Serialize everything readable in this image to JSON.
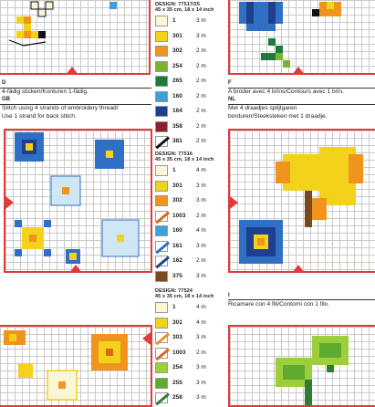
{
  "legend1": {
    "design": "DESIGN: 77517/25",
    "size": "45 x 35 cm, 18 x 14 inch",
    "rows": [
      {
        "color": "#fbf6d6",
        "code": "1",
        "len": "3 m"
      },
      {
        "color": "#f2d21b",
        "code": "301",
        "len": "3 m"
      },
      {
        "color": "#f0941e",
        "code": "302",
        "len": "2 m"
      },
      {
        "color": "#7ab32c",
        "code": "254",
        "len": "2 m"
      },
      {
        "color": "#1e7a3c",
        "code": "265",
        "len": "2 m"
      },
      {
        "color": "#3ea0d8",
        "code": "160",
        "len": "2 m"
      },
      {
        "color": "#1f3f8f",
        "code": "164",
        "len": "2 m"
      },
      {
        "color": "#8a1f2f",
        "code": "358",
        "len": "2 m"
      },
      {
        "color": "#111111",
        "code": "381",
        "len": "2 m",
        "half": true
      }
    ]
  },
  "legend2": {
    "design": "DESIGN: 77516",
    "size": "45 x 35 cm, 18 x 14 inch",
    "rows": [
      {
        "color": "#fbf6d6",
        "code": "1",
        "len": "4 m"
      },
      {
        "color": "#f2d21b",
        "code": "301",
        "len": "3 m"
      },
      {
        "color": "#f0941e",
        "code": "302",
        "len": "3 m"
      },
      {
        "color": "#e0661e",
        "code": "1003",
        "len": "2 m",
        "half": true
      },
      {
        "color": "#3ea0d8",
        "code": "160",
        "len": "4 m"
      },
      {
        "color": "#2f6fc4",
        "code": "161",
        "len": "3 m",
        "half": true
      },
      {
        "color": "#1f3f8f",
        "code": "162",
        "len": "2 m",
        "half": true
      },
      {
        "color": "#7a4a1e",
        "code": "375",
        "len": "3 m"
      }
    ]
  },
  "legend3": {
    "design": "DESIGN: 77524",
    "size": "45 x 35 cm, 18 x 14 inch",
    "rows": [
      {
        "color": "#fbf6d6",
        "code": "1",
        "len": "4 m"
      },
      {
        "color": "#f2d21b",
        "code": "301",
        "len": "4 m"
      },
      {
        "color": "#f0941e",
        "code": "303",
        "len": "3 m",
        "half": true
      },
      {
        "color": "#e0661e",
        "code": "1003",
        "len": "2 m",
        "half": true
      },
      {
        "color": "#9ccf3a",
        "code": "254",
        "len": "3 m"
      },
      {
        "color": "#5faa30",
        "code": "255",
        "len": "3 m"
      },
      {
        "color": "#2e7d32",
        "code": "258",
        "len": "3 m",
        "half": true
      }
    ]
  },
  "text": {
    "d_head": "D",
    "d_line": "4-fädig sticken/Konturen 1-fädig.",
    "gb_head": "GB",
    "gb_line1": "Stitch using 4 strands of embroidery thread/",
    "gb_line2": "Use 1 strand for back stitch.",
    "f_head": "F",
    "f_line": "A broder avec 4 brins/Contours avec 1 brin.",
    "nl_head": "NL",
    "nl_line1": "Met 4 draadjes splijtgaren",
    "nl_line2": "borduren/Steeksteken met 1 draadje.",
    "i_head": "I",
    "i_line": "Ricamare con 4 fili/Contorni con 1 filo."
  }
}
